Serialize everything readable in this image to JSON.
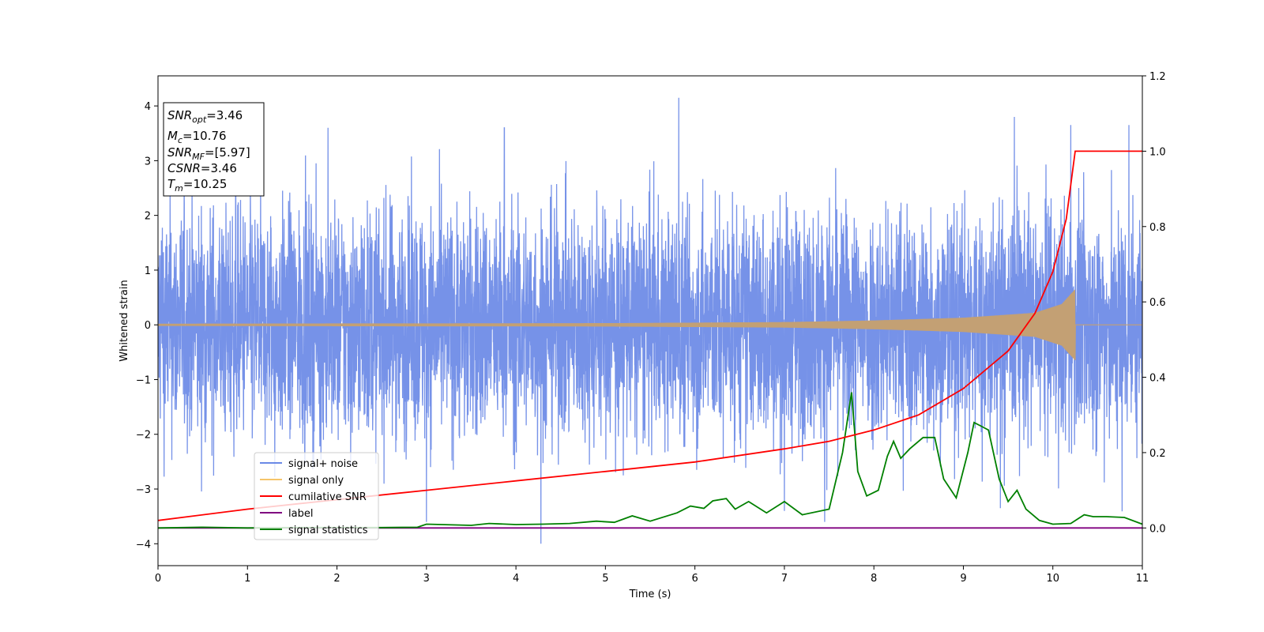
{
  "chart_data": {
    "type": "line",
    "xlabel": "Time (s)",
    "ylabel": "Whitened strain",
    "xlim": [
      0,
      11
    ],
    "ylim": [
      -4.4,
      4.55
    ],
    "y2lim": [
      -0.1,
      1.2
    ],
    "xticks": [
      0,
      1,
      2,
      3,
      4,
      5,
      6,
      7,
      8,
      9,
      10,
      11
    ],
    "yticks": [
      -4,
      -3,
      -2,
      -1,
      0,
      1,
      2,
      3,
      4
    ],
    "y2ticks": [
      0.0,
      0.2,
      0.4,
      0.6,
      0.8,
      1.0,
      1.2
    ],
    "legend_position": "lower-left",
    "legend": [
      {
        "name": "signal+ noise",
        "color": "#6a89e6"
      },
      {
        "name": "signal only",
        "color": "#f5c56a"
      },
      {
        "name": "cumilative SNR",
        "color": "#ff0000"
      },
      {
        "name": "label",
        "color": "#800080"
      },
      {
        "name": "signal statistics",
        "color": "#008000"
      }
    ],
    "annotation": {
      "lines": [
        {
          "var": "SNR",
          "sub": "opt",
          "value": "=3.46"
        },
        {
          "var": "M",
          "sub": "c",
          "value": "=10.76"
        },
        {
          "var": "SNR",
          "sub": "MF",
          "value": "=[5.97]"
        },
        {
          "var": "CSNR",
          "sub": "",
          "value": "=3.46"
        },
        {
          "var": "T",
          "sub": "m",
          "value": "=10.25"
        }
      ]
    },
    "noise_spike_tops": [
      {
        "x": 1.9,
        "y": 3.6
      },
      {
        "x": 3.87,
        "y": 3.6
      },
      {
        "x": 5.82,
        "y": 4.15
      },
      {
        "x": 9.57,
        "y": 3.8
      },
      {
        "x": 10.2,
        "y": 3.65
      },
      {
        "x": 10.85,
        "y": 3.65
      }
    ],
    "noise_spike_bottoms": [
      {
        "x": 4.28,
        "y": -4.0
      },
      {
        "x": 3.0,
        "y": -3.6
      },
      {
        "x": 7.0,
        "y": -3.4
      }
    ],
    "signal_envelope": [
      {
        "x": 0,
        "amp": 0.02
      },
      {
        "x": 5,
        "amp": 0.03
      },
      {
        "x": 7,
        "amp": 0.05
      },
      {
        "x": 8,
        "amp": 0.08
      },
      {
        "x": 9,
        "amp": 0.13
      },
      {
        "x": 9.8,
        "amp": 0.22
      },
      {
        "x": 10.1,
        "amp": 0.38
      },
      {
        "x": 10.25,
        "amp": 0.65
      }
    ],
    "cumulative_snr": [
      {
        "x": 0,
        "y": 0.02
      },
      {
        "x": 1,
        "y": 0.05
      },
      {
        "x": 2,
        "y": 0.075
      },
      {
        "x": 3,
        "y": 0.1
      },
      {
        "x": 4,
        "y": 0.125
      },
      {
        "x": 5,
        "y": 0.15
      },
      {
        "x": 6,
        "y": 0.175
      },
      {
        "x": 7,
        "y": 0.21
      },
      {
        "x": 7.5,
        "y": 0.23
      },
      {
        "x": 8,
        "y": 0.26
      },
      {
        "x": 8.5,
        "y": 0.3
      },
      {
        "x": 9,
        "y": 0.37
      },
      {
        "x": 9.5,
        "y": 0.47
      },
      {
        "x": 9.8,
        "y": 0.57
      },
      {
        "x": 10,
        "y": 0.68
      },
      {
        "x": 10.15,
        "y": 0.82
      },
      {
        "x": 10.25,
        "y": 1.0
      },
      {
        "x": 11,
        "y": 1.0
      }
    ],
    "label_line": [
      {
        "x": 0,
        "y": 0.0
      },
      {
        "x": 11,
        "y": 0.0
      }
    ],
    "signal_statistics": [
      {
        "x": 0,
        "y": 0.0
      },
      {
        "x": 0.5,
        "y": 0.002
      },
      {
        "x": 1.0,
        "y": 0.0
      },
      {
        "x": 1.5,
        "y": 0.001
      },
      {
        "x": 2.0,
        "y": 0.001
      },
      {
        "x": 2.5,
        "y": 0.001
      },
      {
        "x": 2.9,
        "y": 0.002
      },
      {
        "x": 3.0,
        "y": 0.01
      },
      {
        "x": 3.5,
        "y": 0.007
      },
      {
        "x": 3.7,
        "y": 0.012
      },
      {
        "x": 4.0,
        "y": 0.009
      },
      {
        "x": 4.3,
        "y": 0.01
      },
      {
        "x": 4.6,
        "y": 0.012
      },
      {
        "x": 4.9,
        "y": 0.018
      },
      {
        "x": 5.1,
        "y": 0.015
      },
      {
        "x": 5.3,
        "y": 0.032
      },
      {
        "x": 5.5,
        "y": 0.018
      },
      {
        "x": 5.8,
        "y": 0.04
      },
      {
        "x": 5.95,
        "y": 0.058
      },
      {
        "x": 6.1,
        "y": 0.052
      },
      {
        "x": 6.2,
        "y": 0.072
      },
      {
        "x": 6.35,
        "y": 0.078
      },
      {
        "x": 6.45,
        "y": 0.05
      },
      {
        "x": 6.6,
        "y": 0.07
      },
      {
        "x": 6.8,
        "y": 0.04
      },
      {
        "x": 7.0,
        "y": 0.07
      },
      {
        "x": 7.2,
        "y": 0.035
      },
      {
        "x": 7.5,
        "y": 0.05
      },
      {
        "x": 7.65,
        "y": 0.2
      },
      {
        "x": 7.75,
        "y": 0.36
      },
      {
        "x": 7.82,
        "y": 0.15
      },
      {
        "x": 7.92,
        "y": 0.085
      },
      {
        "x": 8.05,
        "y": 0.1
      },
      {
        "x": 8.15,
        "y": 0.19
      },
      {
        "x": 8.22,
        "y": 0.23
      },
      {
        "x": 8.3,
        "y": 0.185
      },
      {
        "x": 8.4,
        "y": 0.21
      },
      {
        "x": 8.55,
        "y": 0.24
      },
      {
        "x": 8.68,
        "y": 0.24
      },
      {
        "x": 8.78,
        "y": 0.13
      },
      {
        "x": 8.92,
        "y": 0.08
      },
      {
        "x": 9.05,
        "y": 0.2
      },
      {
        "x": 9.12,
        "y": 0.28
      },
      {
        "x": 9.2,
        "y": 0.27
      },
      {
        "x": 9.28,
        "y": 0.26
      },
      {
        "x": 9.4,
        "y": 0.13
      },
      {
        "x": 9.5,
        "y": 0.07
      },
      {
        "x": 9.6,
        "y": 0.1
      },
      {
        "x": 9.7,
        "y": 0.05
      },
      {
        "x": 9.85,
        "y": 0.02
      },
      {
        "x": 10.0,
        "y": 0.01
      },
      {
        "x": 10.2,
        "y": 0.012
      },
      {
        "x": 10.35,
        "y": 0.035
      },
      {
        "x": 10.45,
        "y": 0.03
      },
      {
        "x": 10.6,
        "y": 0.03
      },
      {
        "x": 10.8,
        "y": 0.028
      },
      {
        "x": 11.0,
        "y": 0.01
      }
    ]
  }
}
